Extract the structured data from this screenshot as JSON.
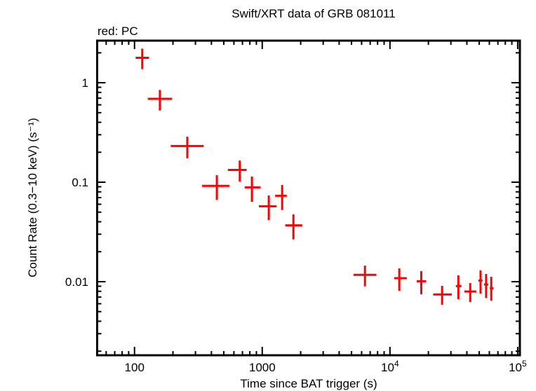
{
  "chart_data": {
    "type": "scatter",
    "title": "Swift/XRT data of GRB 081011",
    "subtitle": "red: PC",
    "xlabel": "Time since BAT trigger (s)",
    "ylabel": "Count Rate (0.3−10 keV) (s⁻¹)",
    "xscale": "log",
    "yscale": "log",
    "xlim": [
      51,
      104000
    ],
    "ylim": [
      0.00182,
      2.65
    ],
    "grid": false,
    "x_ticks": [
      {
        "value": 100,
        "label": "100"
      },
      {
        "value": 1000,
        "label": "1000"
      },
      {
        "value": 10000,
        "label": "10",
        "sup": "4"
      },
      {
        "value": 100000,
        "label": "10",
        "sup": "5"
      }
    ],
    "y_ticks": [
      {
        "value": 1,
        "label": "1"
      },
      {
        "value": 0.1,
        "label": "0.1"
      },
      {
        "value": 0.01,
        "label": "0.01"
      }
    ],
    "series": [
      {
        "color": "#ff0000",
        "points": [
          {
            "x": 115,
            "xlo": 102,
            "xhi": 130,
            "y": 1.78,
            "ylo": 1.37,
            "yhi": 2.2
          },
          {
            "x": 158,
            "xlo": 127,
            "xhi": 197,
            "y": 0.689,
            "ylo": 0.525,
            "yhi": 0.846
          },
          {
            "x": 259,
            "xlo": 192,
            "xhi": 348,
            "y": 0.231,
            "ylo": 0.174,
            "yhi": 0.287
          },
          {
            "x": 441,
            "xlo": 338,
            "xhi": 553,
            "y": 0.0918,
            "ylo": 0.0664,
            "yhi": 0.1175
          },
          {
            "x": 667,
            "xlo": 538,
            "xhi": 754,
            "y": 0.133,
            "ylo": 0.1016,
            "yhi": 0.165
          },
          {
            "x": 830,
            "xlo": 729,
            "xhi": 970,
            "y": 0.0888,
            "ylo": 0.0635,
            "yhi": 0.114
          },
          {
            "x": 1125,
            "xlo": 942,
            "xhi": 1294,
            "y": 0.0573,
            "ylo": 0.0415,
            "yhi": 0.0735
          },
          {
            "x": 1432,
            "xlo": 1262,
            "xhi": 1556,
            "y": 0.0731,
            "ylo": 0.0525,
            "yhi": 0.0937
          },
          {
            "x": 1754,
            "xlo": 1514,
            "xhi": 2056,
            "y": 0.0368,
            "ylo": 0.0266,
            "yhi": 0.0474
          },
          {
            "x": 6370,
            "xlo": 5180,
            "xhi": 7830,
            "y": 0.0117,
            "ylo": 0.00897,
            "yhi": 0.0145
          },
          {
            "x": 11830,
            "xlo": 10790,
            "xhi": 13550,
            "y": 0.01084,
            "ylo": 0.0081,
            "yhi": 0.0136
          },
          {
            "x": 17580,
            "xlo": 16200,
            "xhi": 19200,
            "y": 0.0101,
            "ylo": 0.00747,
            "yhi": 0.01276
          },
          {
            "x": 25600,
            "xlo": 21800,
            "xhi": 30500,
            "y": 0.00743,
            "ylo": 0.00586,
            "yhi": 0.00907
          },
          {
            "x": 34300,
            "xlo": 32800,
            "xhi": 36300,
            "y": 0.00902,
            "ylo": 0.00667,
            "yhi": 0.01157
          },
          {
            "x": 42500,
            "xlo": 38200,
            "xhi": 47400,
            "y": 0.00797,
            "ylo": 0.00625,
            "yhi": 0.00968
          },
          {
            "x": 51200,
            "xlo": 49200,
            "xhi": 53100,
            "y": 0.01027,
            "ylo": 0.00759,
            "yhi": 0.01297
          },
          {
            "x": 56600,
            "xlo": 54500,
            "xhi": 58800,
            "y": 0.00937,
            "ylo": 0.00685,
            "yhi": 0.01195
          },
          {
            "x": 62100,
            "xlo": 60500,
            "xhi": 64700,
            "y": 0.0086,
            "ylo": 0.00645,
            "yhi": 0.0112
          }
        ]
      }
    ]
  }
}
